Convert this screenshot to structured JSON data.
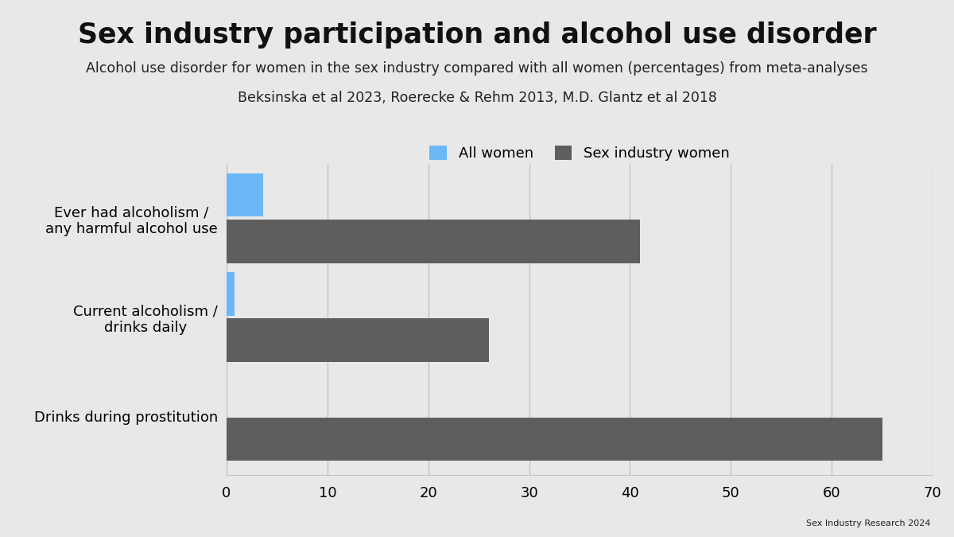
{
  "chart_data": {
    "type": "bar",
    "orientation": "horizontal",
    "title": "Sex industry participation and alcohol use disorder",
    "subtitle": "Alcohol use disorder for women in the sex industry compared with all women (percentages) from meta-analyses",
    "source": "Beksinska et al 2023, Roerecke & Rehm 2013, M.D. Glantz et al 2018",
    "credit": "Sex Industry Research 2024",
    "categories": [
      "Ever had alcoholism /\nany harmful alcohol use",
      "Current alcoholism /\ndrinks daily",
      "Drinks during prostitution"
    ],
    "series": [
      {
        "name": "All women",
        "color": "#6cb8f6",
        "values": [
          3.6,
          0.8,
          null
        ]
      },
      {
        "name": "Sex industry women",
        "color": "#5e5e5e",
        "values": [
          41,
          26,
          65
        ]
      }
    ],
    "xlim": [
      0,
      70
    ],
    "xticks": [
      0,
      10,
      20,
      30,
      40,
      50,
      60,
      70
    ],
    "grid": true,
    "legend": "upper center"
  }
}
